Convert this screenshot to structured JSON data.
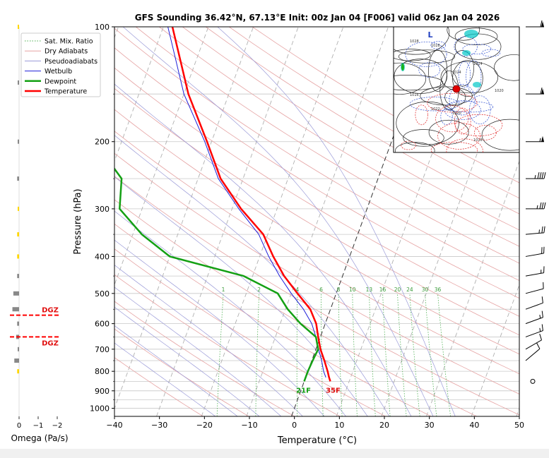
{
  "chart_data": {
    "type": "skew-t",
    "title": "GFS Sounding 36.42°N, 67.13°E Init: 00z Jan 04 [F006] valid 06z Jan 04 2026",
    "xlabel": "Temperature (°C)",
    "ylabel": "Pressure (hPa)",
    "xlim": [
      -40,
      50
    ],
    "ylim": [
      1050,
      100
    ],
    "x_ticks": [
      -40,
      -30,
      -20,
      -10,
      0,
      10,
      20,
      30,
      40,
      50
    ],
    "y_ticks": [
      100,
      200,
      300,
      400,
      500,
      600,
      700,
      800,
      900,
      1000
    ],
    "legend": {
      "placement": "top-left",
      "entries": [
        "Sat. Mix. Ratio",
        "Dry Adiabats",
        "Pseudoadiabats",
        "Wetbulb",
        "Dewpoint",
        "Temperature"
      ]
    },
    "mixing_ratio_labels": [
      "1",
      "2",
      "4",
      "6",
      "8",
      "10",
      "13",
      "16",
      "20",
      "24",
      "30",
      "36"
    ],
    "mixing_ratio_values": [
      1,
      2,
      4,
      6,
      8,
      10,
      13,
      16,
      20,
      24,
      30,
      36
    ],
    "dry_adiabat_thetas": [
      250,
      260,
      270,
      280,
      290,
      300,
      310,
      320,
      330,
      340,
      350,
      360,
      370,
      380,
      390,
      400,
      410,
      420,
      430,
      440,
      450
    ],
    "pseudoadiabat_thetaw": [
      -20,
      -15,
      -10,
      -5,
      0,
      5,
      10,
      15,
      20,
      25,
      30,
      35
    ],
    "isotherms_dashed": [
      -120,
      -110,
      -100,
      -90,
      -80,
      -70,
      -60,
      -50,
      -40,
      -30,
      -20,
      -10,
      0,
      10,
      20,
      30,
      40,
      50
    ],
    "series": [
      {
        "name": "Temperature",
        "points": [
          [
            850,
            5.8
          ],
          [
            830,
            5.2
          ],
          [
            800,
            4.4
          ],
          [
            750,
            2.8
          ],
          [
            700,
            1.0
          ],
          [
            650,
            -0.5
          ],
          [
            600,
            -2.0
          ],
          [
            550,
            -4.5
          ],
          [
            500,
            -8.6
          ],
          [
            450,
            -13
          ],
          [
            400,
            -17
          ],
          [
            350,
            -21
          ],
          [
            300,
            -28
          ],
          [
            250,
            -35
          ],
          [
            200,
            -41
          ],
          [
            150,
            -49
          ],
          [
            100,
            -58
          ]
        ]
      },
      {
        "name": "Dewpoint",
        "points": [
          [
            850,
            0
          ],
          [
            800,
            0
          ],
          [
            750,
            0.2
          ],
          [
            700,
            0.5
          ],
          [
            650,
            -1.0
          ],
          [
            600,
            -5.5
          ],
          [
            550,
            -9.5
          ],
          [
            500,
            -13
          ],
          [
            450,
            -22
          ],
          [
            400,
            -40
          ],
          [
            350,
            -48
          ],
          [
            300,
            -55
          ],
          [
            250,
            -57
          ],
          [
            200,
            -66
          ],
          [
            150,
            -73
          ],
          [
            100,
            -81
          ]
        ]
      },
      {
        "name": "Wetbulb",
        "points": [
          [
            830,
            4.5
          ],
          [
            800,
            3.5
          ],
          [
            750,
            2.2
          ],
          [
            700,
            0.6
          ],
          [
            650,
            -1.0
          ],
          [
            600,
            -3.0
          ],
          [
            550,
            -6.0
          ],
          [
            500,
            -10
          ],
          [
            450,
            -14
          ],
          [
            400,
            -18
          ],
          [
            350,
            -22
          ],
          [
            300,
            -28.5
          ],
          [
            250,
            -35.5
          ],
          [
            200,
            -41.5
          ],
          [
            150,
            -50
          ],
          [
            100,
            -59
          ]
        ]
      }
    ],
    "surface_labels": {
      "temperature": "35F",
      "dewpoint": "21F"
    },
    "dgz_label": "DGZ",
    "dgz_bounds_hpa": [
      570,
      650
    ],
    "omega": {
      "label": "Omega (Pa/s)",
      "ticks": [
        "0",
        "−1",
        "−2"
      ],
      "tick_values": [
        0,
        -1,
        -2
      ],
      "bars": [
        {
          "p": 100,
          "v": -0.05,
          "c": "#ffd700"
        },
        {
          "p": 140,
          "v": -0.05,
          "c": "#888888"
        },
        {
          "p": 200,
          "v": -0.05,
          "c": "#888888"
        },
        {
          "p": 250,
          "v": -0.1,
          "c": "#888888"
        },
        {
          "p": 300,
          "v": -0.05,
          "c": "#ffd700"
        },
        {
          "p": 350,
          "v": -0.1,
          "c": "#ffd700"
        },
        {
          "p": 400,
          "v": -0.1,
          "c": "#ffd700"
        },
        {
          "p": 450,
          "v": -0.1,
          "c": "#888888"
        },
        {
          "p": 500,
          "v": -0.3,
          "c": "#888888"
        },
        {
          "p": 550,
          "v": -0.35,
          "c": "#888888"
        },
        {
          "p": 600,
          "v": -0.1,
          "c": "#888888"
        },
        {
          "p": 650,
          "v": -0.15,
          "c": "#888888"
        },
        {
          "p": 700,
          "v": -0.05,
          "c": "#888888"
        },
        {
          "p": 750,
          "v": -0.25,
          "c": "#888888"
        },
        {
          "p": 800,
          "v": -0.1,
          "c": "#ffd700"
        }
      ]
    },
    "wind_barbs": [
      {
        "p": 100,
        "spd": 60,
        "dir": 270
      },
      {
        "p": 150,
        "spd": 60,
        "dir": 270
      },
      {
        "p": 200,
        "spd": 55,
        "dir": 270
      },
      {
        "p": 250,
        "spd": 45,
        "dir": 270
      },
      {
        "p": 300,
        "spd": 35,
        "dir": 270
      },
      {
        "p": 350,
        "spd": 25,
        "dir": 265
      },
      {
        "p": 400,
        "spd": 20,
        "dir": 260
      },
      {
        "p": 450,
        "spd": 15,
        "dir": 260
      },
      {
        "p": 500,
        "spd": 10,
        "dir": 255
      },
      {
        "p": 550,
        "spd": 10,
        "dir": 250
      },
      {
        "p": 600,
        "spd": 15,
        "dir": 250
      },
      {
        "p": 650,
        "spd": 15,
        "dir": 250
      },
      {
        "p": 700,
        "spd": 10,
        "dir": 240
      },
      {
        "p": 750,
        "spd": 10,
        "dir": 230
      },
      {
        "p": 850,
        "spd": 0,
        "dir": 0
      }
    ],
    "inset_map": {
      "label_L": "L",
      "isobar_labels": [
        "1028",
        "1028",
        "1024",
        "1024",
        "1020",
        "1016",
        "1022",
        "1020",
        "1016"
      ]
    }
  }
}
